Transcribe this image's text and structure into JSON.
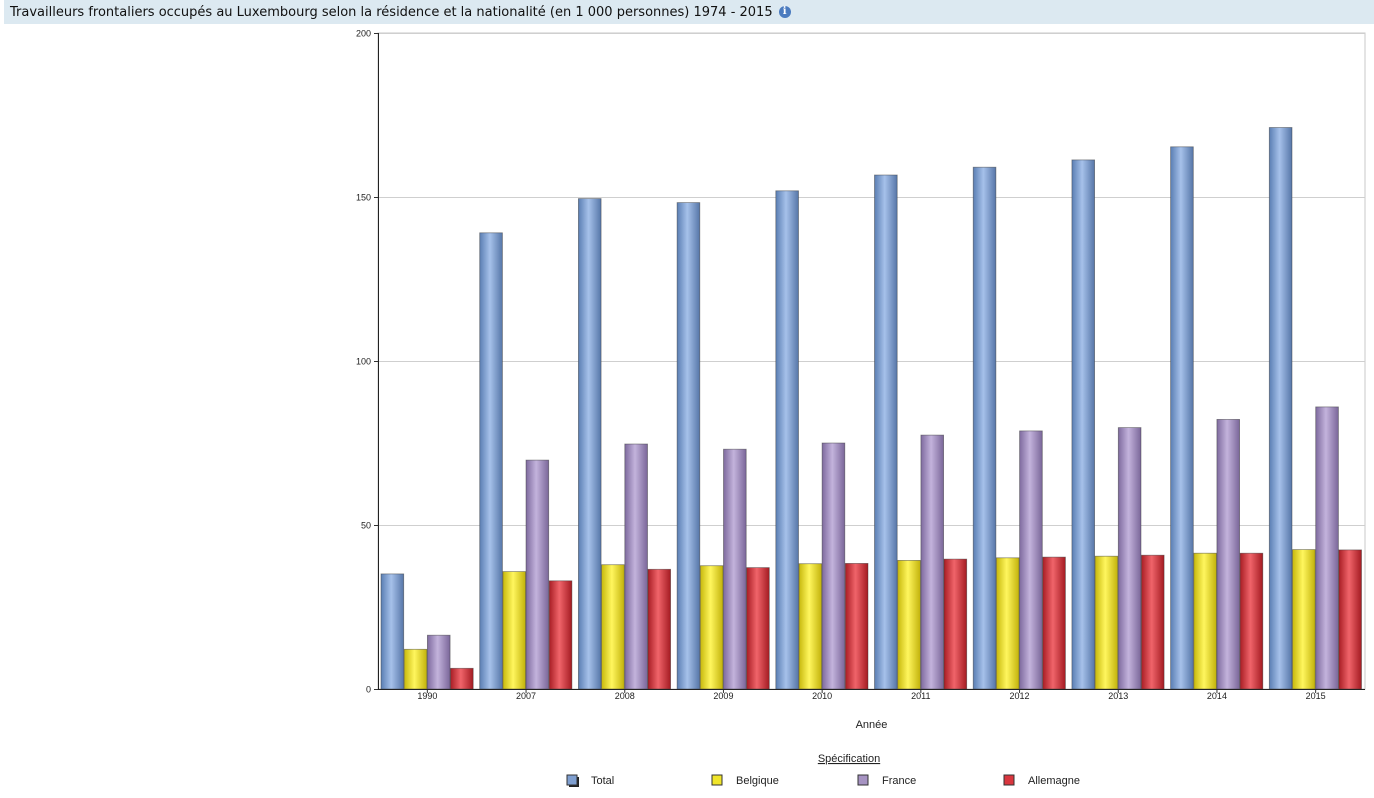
{
  "header": {
    "title": "Travailleurs frontaliers occupés au Luxembourg selon la résidence et la nationalité (en 1 000 personnes) 1974 - 2015"
  },
  "chart_data": {
    "type": "bar",
    "title": "Travailleurs frontaliers occupés au Luxembourg selon la résidence et la nationalité (en 1 000 personnes) 1974 - 2015",
    "xlabel": "Année",
    "ylabel": "",
    "ylim": [
      0,
      200
    ],
    "yticks": [
      0,
      50,
      100,
      150,
      200
    ],
    "grid": true,
    "legend_title": "Spécification",
    "legend_position": "bottom",
    "categories": [
      "1990",
      "2007",
      "2008",
      "2009",
      "2010",
      "2011",
      "2012",
      "2013",
      "2014",
      "2015"
    ],
    "series": [
      {
        "name": "Total",
        "color": "#7f9fd0",
        "values": [
          35.1,
          139.1,
          149.5,
          148.3,
          151.9,
          156.7,
          159.1,
          161.3,
          165.3,
          171.2
        ]
      },
      {
        "name": "Belgique",
        "color": "#f0e52a",
        "values": [
          12.1,
          35.8,
          37.9,
          37.6,
          38.2,
          39.2,
          40.0,
          40.5,
          41.4,
          42.5
        ]
      },
      {
        "name": "France",
        "color": "#a693c2",
        "values": [
          16.4,
          69.8,
          74.7,
          73.1,
          75.0,
          77.4,
          78.7,
          79.7,
          82.2,
          86.0
        ]
      },
      {
        "name": "Allemagne",
        "color": "#d9363e",
        "values": [
          6.3,
          33.0,
          36.5,
          37.0,
          38.3,
          39.6,
          40.2,
          40.8,
          41.4,
          42.4
        ]
      }
    ]
  }
}
